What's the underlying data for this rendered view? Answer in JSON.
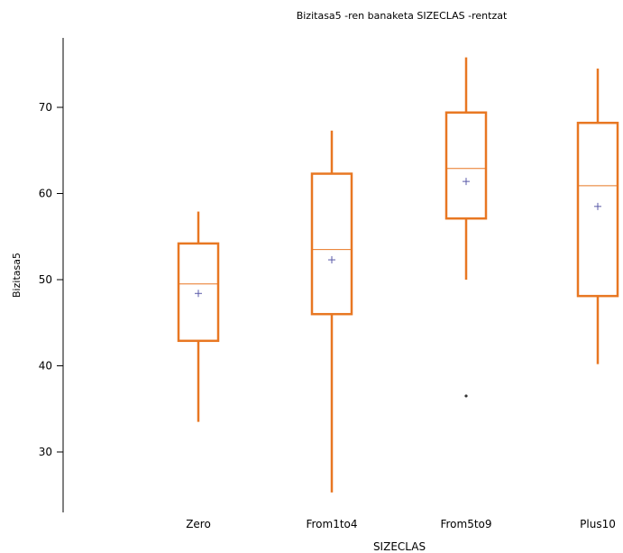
{
  "chart_data": {
    "type": "boxplot",
    "title": "Bizitasa5 -ren banaketa SIZECLAS -rentzat",
    "xlabel": "SIZECLAS",
    "ylabel": "Bizitasa5",
    "ylim": [
      22,
      80
    ],
    "yticks": [
      30,
      40,
      50,
      60,
      70
    ],
    "colors": {
      "box": "#E87722",
      "mean": "#5A5AA8",
      "outlier": "#333333"
    },
    "categories": [
      "Zero",
      "From1to4",
      "From5to9",
      "Plus10"
    ],
    "boxes": [
      {
        "category": "Zero",
        "min": 33.5,
        "q1": 42.9,
        "median": 49.5,
        "q3": 54.2,
        "max": 57.9,
        "mean": 48.4,
        "outliers": []
      },
      {
        "category": "From1to4",
        "min": 25.3,
        "q1": 46.0,
        "median": 53.5,
        "q3": 62.3,
        "max": 67.3,
        "mean": 52.3,
        "outliers": []
      },
      {
        "category": "From5to9",
        "min": 50.0,
        "q1": 57.1,
        "median": 62.9,
        "q3": 69.4,
        "max": 75.8,
        "mean": 61.4,
        "outliers": [
          36.5
        ]
      },
      {
        "category": "Plus10",
        "min": 40.2,
        "q1": 48.1,
        "median": 60.9,
        "q3": 68.2,
        "max": 74.5,
        "mean": 58.5,
        "outliers": []
      }
    ]
  }
}
